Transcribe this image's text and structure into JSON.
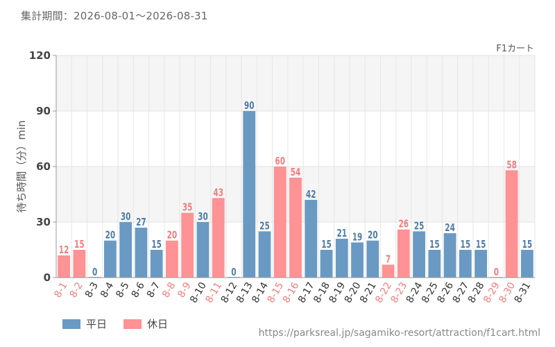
{
  "header": {
    "period": "集計期間：2026-08-01〜2026-08-31"
  },
  "legend": {
    "weekday": "平日",
    "holiday": "休日"
  },
  "source": "https://parksreal.jp/sagamiko-resort/attraction/f1cart.html",
  "colors": {
    "weekday": "#6a9ac3",
    "holiday": "#fe9294",
    "weekday_label": "#4f7ca6",
    "holiday_label": "#f07e7f"
  },
  "chart_data": {
    "type": "bar",
    "title": "F1カート",
    "ylabel": "待ち時間（分）min",
    "ylim": [
      0,
      120
    ],
    "yticks": [
      0,
      30,
      60,
      90,
      120
    ],
    "grid": true,
    "legend_position": "bottom-left",
    "categories": [
      "8-1",
      "8-2",
      "8-3",
      "8-4",
      "8-5",
      "8-6",
      "8-7",
      "8-8",
      "8-9",
      "8-10",
      "8-11",
      "8-12",
      "8-13",
      "8-14",
      "8-15",
      "8-16",
      "8-17",
      "8-18",
      "8-19",
      "8-20",
      "8-21",
      "8-22",
      "8-23",
      "8-24",
      "8-25",
      "8-26",
      "8-27",
      "8-28",
      "8-29",
      "8-30",
      "8-31"
    ],
    "values": [
      12,
      15,
      0,
      20,
      30,
      27,
      15,
      20,
      35,
      30,
      43,
      0,
      90,
      25,
      60,
      54,
      42,
      15,
      21,
      19,
      20,
      7,
      26,
      25,
      15,
      24,
      15,
      15,
      0,
      58,
      15
    ],
    "day_type": [
      "holiday",
      "holiday",
      "weekday",
      "weekday",
      "weekday",
      "weekday",
      "weekday",
      "holiday",
      "holiday",
      "weekday",
      "holiday",
      "weekday",
      "weekday",
      "weekday",
      "holiday",
      "holiday",
      "weekday",
      "weekday",
      "weekday",
      "weekday",
      "weekday",
      "holiday",
      "holiday",
      "weekday",
      "weekday",
      "weekday",
      "weekday",
      "weekday",
      "holiday",
      "holiday",
      "weekday"
    ]
  }
}
